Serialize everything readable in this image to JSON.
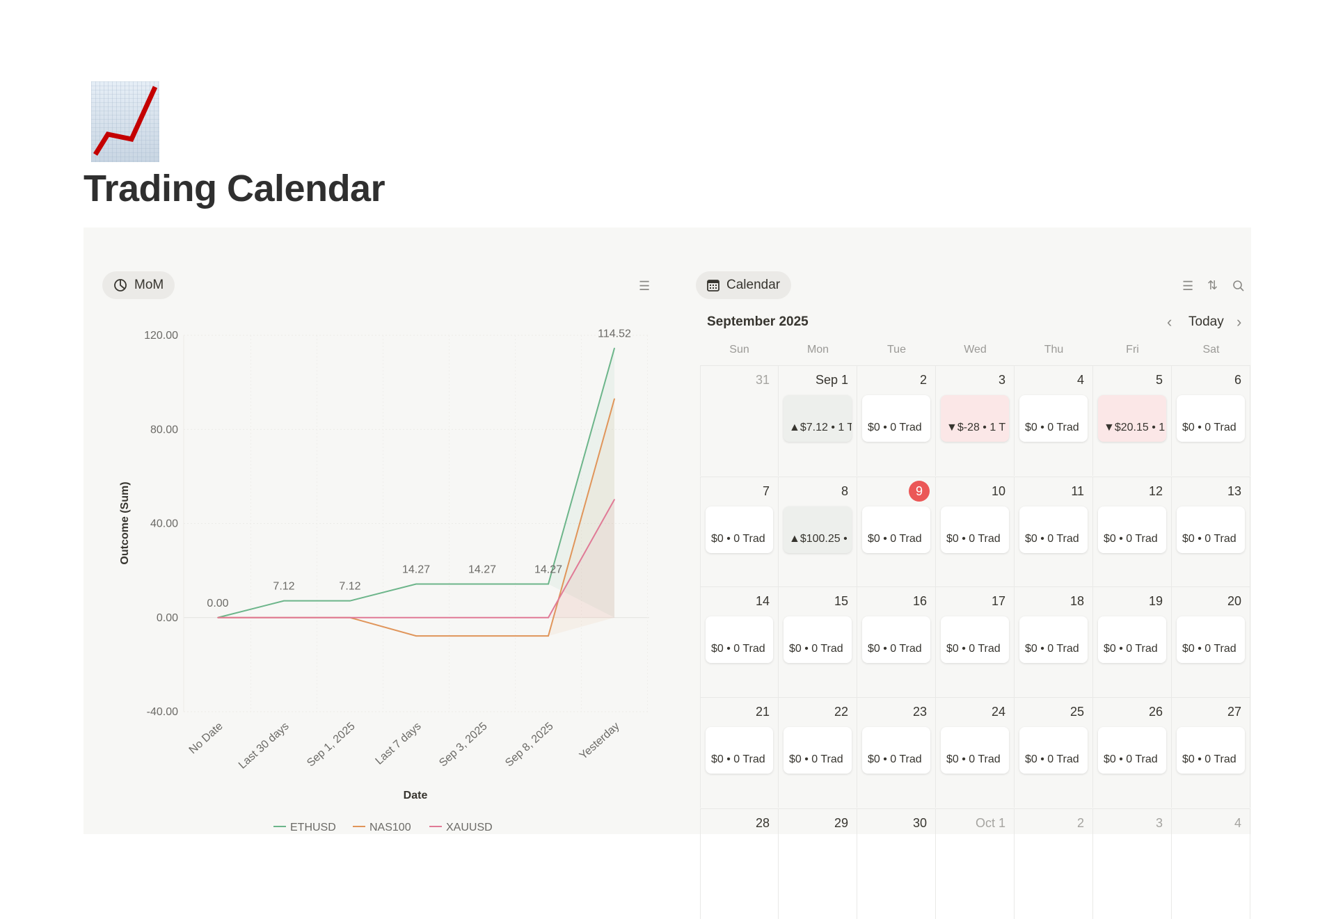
{
  "page": {
    "title": "Trading Calendar",
    "icon": "chart-increasing-icon"
  },
  "chart_view": {
    "tab_label": "MoM",
    "tab_icon": "pie-chart-icon",
    "filter_icon": "filter-icon"
  },
  "chart_data": {
    "type": "line",
    "title": "",
    "xlabel": "Date",
    "ylabel": "Outcome (Sum)",
    "categories": [
      "No Date",
      "Last 30 days",
      "Sep 1, 2025",
      "Last 7 days",
      "Sep 3, 2025",
      "Sep 8, 2025",
      "Yesterday"
    ],
    "ylim": [
      -40,
      120
    ],
    "yticks": [
      "120.00",
      "80.00",
      "40.00",
      "0.00",
      "-40.00"
    ],
    "ytick_values": [
      120,
      80,
      40,
      0,
      -40
    ],
    "grid": true,
    "legend": "bottom",
    "series": [
      {
        "name": "ETHUSD",
        "color": "#6cb58a",
        "values": [
          0,
          7.12,
          7.12,
          14.27,
          14.27,
          14.27,
          114.52
        ],
        "labels": [
          "0.00",
          "7.12",
          "7.12",
          "14.27",
          "14.27",
          "14.27",
          "114.52"
        ]
      },
      {
        "name": "NAS100",
        "color": "#e0955a",
        "values": [
          0,
          0,
          0,
          -7.8,
          -7.8,
          -7.8,
          93
        ]
      },
      {
        "name": "XAUUSD",
        "color": "#e07a96",
        "values": [
          0,
          0,
          0,
          0,
          0,
          0,
          50.2
        ]
      }
    ]
  },
  "calendar": {
    "tab_label": "Calendar",
    "month": "September 2025",
    "today_label": "Today",
    "weekdays": [
      "Sun",
      "Mon",
      "Tue",
      "Wed",
      "Thu",
      "Fri",
      "Sat"
    ],
    "weeks": [
      [
        {
          "d": "31",
          "muted": true
        },
        {
          "d": "Sep 1",
          "card": "▲$7.12 • 1 T",
          "tone": "pos"
        },
        {
          "d": "2",
          "card": "$0 • 0 Trad"
        },
        {
          "d": "3",
          "card": "▼$-28 • 1 T",
          "tone": "neg"
        },
        {
          "d": "4",
          "card": "$0 • 0 Trad"
        },
        {
          "d": "5",
          "card": "▼$20.15 • 1",
          "tone": "neg"
        },
        {
          "d": "6",
          "card": "$0 • 0 Trad"
        }
      ],
      [
        {
          "d": "7",
          "card": "$0 • 0 Trad"
        },
        {
          "d": "8",
          "card": "▲$100.25 •",
          "tone": "pos"
        },
        {
          "d": "9",
          "today": true,
          "card": "$0 • 0 Trad"
        },
        {
          "d": "10",
          "card": "$0 • 0 Trad"
        },
        {
          "d": "11",
          "card": "$0 • 0 Trad"
        },
        {
          "d": "12",
          "card": "$0 • 0 Trad"
        },
        {
          "d": "13",
          "card": "$0 • 0 Trad"
        }
      ],
      [
        {
          "d": "14",
          "card": "$0 • 0 Trad"
        },
        {
          "d": "15",
          "card": "$0 • 0 Trad"
        },
        {
          "d": "16",
          "card": "$0 • 0 Trad"
        },
        {
          "d": "17",
          "card": "$0 • 0 Trad"
        },
        {
          "d": "18",
          "card": "$0 • 0 Trad"
        },
        {
          "d": "19",
          "card": "$0 • 0 Trad"
        },
        {
          "d": "20",
          "card": "$0 • 0 Trad"
        }
      ],
      [
        {
          "d": "21",
          "card": "$0 • 0 Trad"
        },
        {
          "d": "22",
          "card": "$0 • 0 Trad"
        },
        {
          "d": "23",
          "card": "$0 • 0 Trad"
        },
        {
          "d": "24",
          "card": "$0 • 0 Trad"
        },
        {
          "d": "25",
          "card": "$0 • 0 Trad"
        },
        {
          "d": "26",
          "card": "$0 • 0 Trad"
        },
        {
          "d": "27",
          "card": "$0 • 0 Trad"
        }
      ],
      [
        {
          "d": "28"
        },
        {
          "d": "29"
        },
        {
          "d": "30"
        },
        {
          "d": "Oct 1",
          "muted": true
        },
        {
          "d": "2",
          "muted": true
        },
        {
          "d": "3",
          "muted": true
        },
        {
          "d": "4",
          "muted": true
        }
      ]
    ]
  }
}
